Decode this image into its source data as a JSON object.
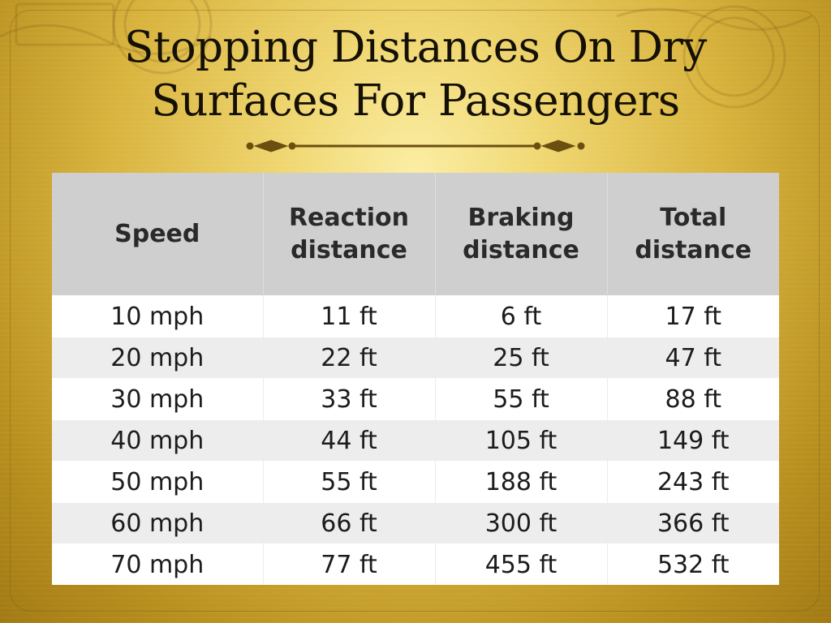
{
  "slide": {
    "title_line1": "Stopping Distances On Dry",
    "title_line2": "Surfaces For Passengers"
  },
  "table": {
    "columns": [
      {
        "line1": "Speed",
        "line2": ""
      },
      {
        "line1": "Reaction",
        "line2": "distance"
      },
      {
        "line1": "Braking",
        "line2": "distance"
      },
      {
        "line1": "Total",
        "line2": "distance"
      }
    ],
    "rows": [
      [
        "10 mph",
        "11 ft",
        "6 ft",
        "17 ft"
      ],
      [
        "20 mph",
        "22 ft",
        "25 ft",
        "47 ft"
      ],
      [
        "30 mph",
        "33 ft",
        "55 ft",
        "88 ft"
      ],
      [
        "40 mph",
        "44 ft",
        "105 ft",
        "149 ft"
      ],
      [
        "50 mph",
        "55 ft",
        "188 ft",
        "243 ft"
      ],
      [
        "60 mph",
        "66 ft",
        "300 ft",
        "366 ft"
      ],
      [
        "70 mph",
        "77 ft",
        "455 ft",
        "532 ft"
      ]
    ]
  },
  "colors": {
    "header_bg": "#cfcfcf",
    "row_odd": "#ffffff",
    "row_even": "#ededed",
    "ornament": "#6b4f10"
  },
  "icons": {
    "divider": "ornamental-divider-icon",
    "background_stamps": "postmark-stamp-icon"
  }
}
